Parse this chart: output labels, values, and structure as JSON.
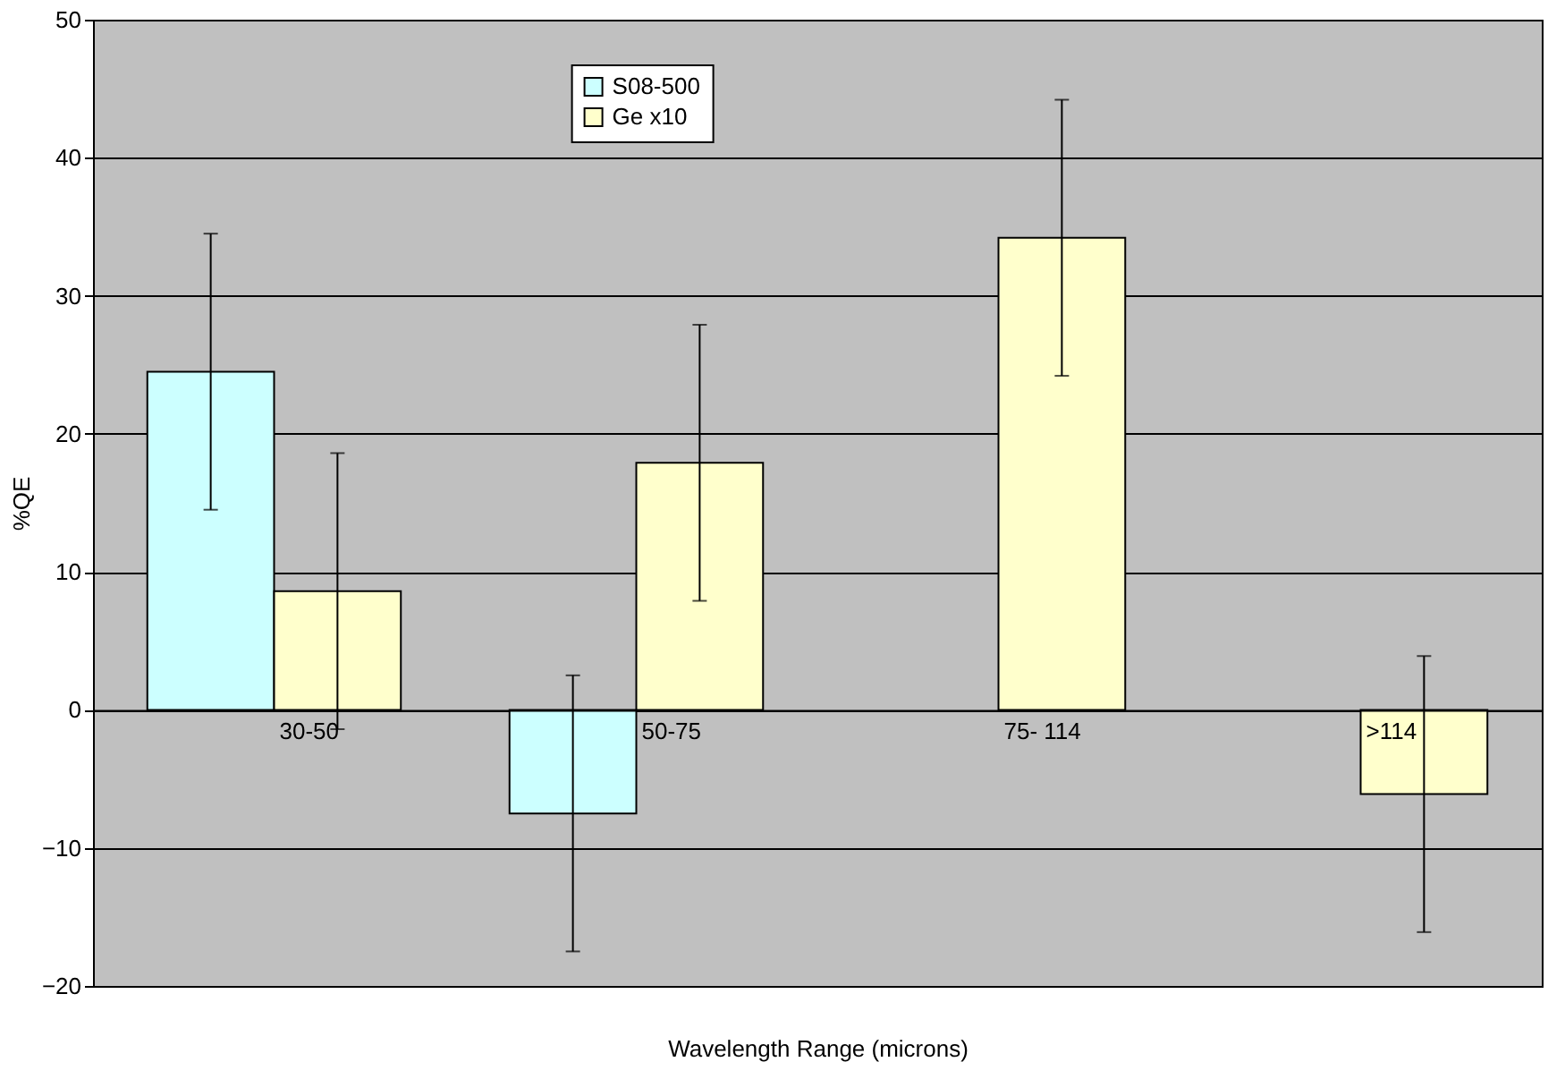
{
  "chart_data": {
    "type": "bar",
    "xlabel": "Wavelength Range (microns)",
    "ylabel": "%QE",
    "categories": [
      "30-50",
      "50-75",
      "75- 114",
      ">114"
    ],
    "series": [
      {
        "name": "S08-500",
        "color": "#ccffff",
        "values": [
          24.5,
          -7.5,
          null,
          null
        ],
        "errors": [
          10,
          10,
          null,
          null
        ]
      },
      {
        "name": "Ge x10",
        "color": "#ffffcc",
        "values": [
          8.6,
          17.9,
          34.2,
          -6.1
        ],
        "errors": [
          10,
          10,
          10,
          10
        ]
      }
    ],
    "ylim": [
      -20,
      50
    ],
    "yticks": [
      -20,
      -10,
      0,
      10,
      20,
      30,
      40,
      50
    ],
    "grid": "y",
    "legend": "top"
  }
}
